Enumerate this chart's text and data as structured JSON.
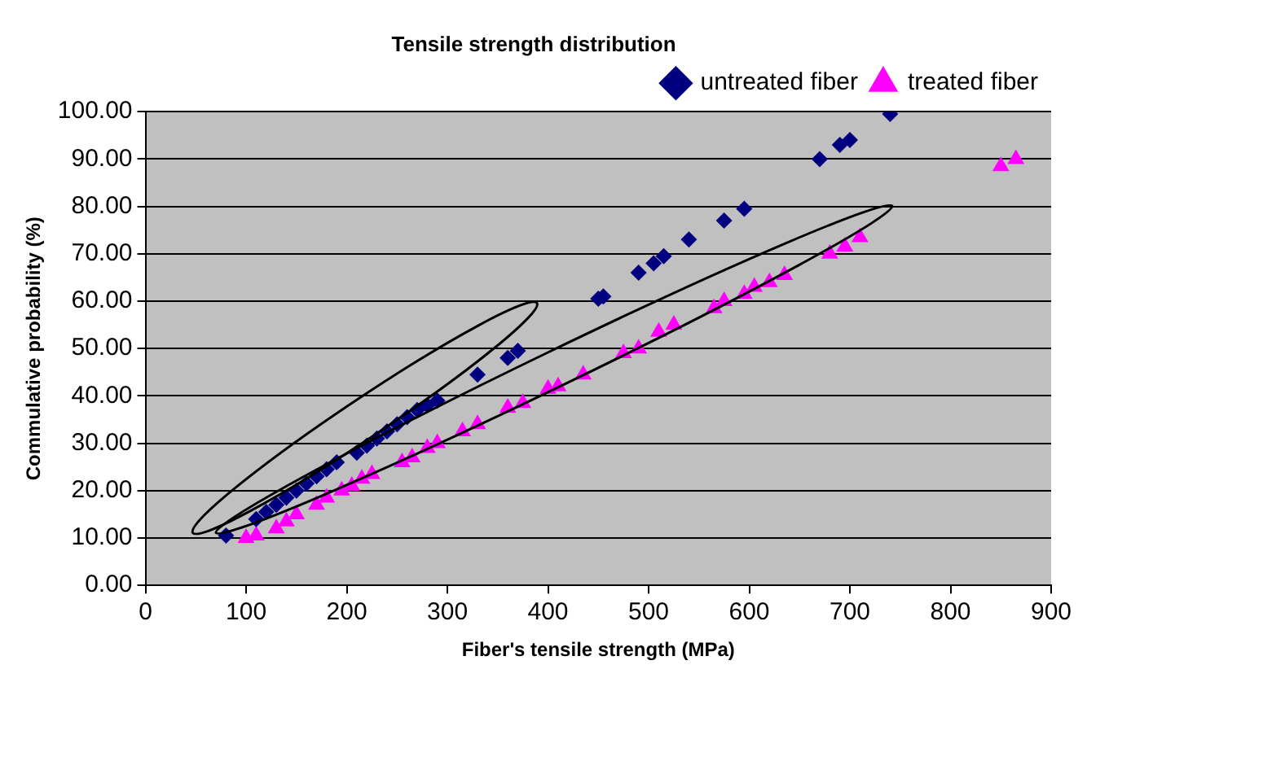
{
  "chart_data": {
    "type": "scatter",
    "title": "Tensile strength distribution",
    "xlabel": "Fiber's tensile strength (MPa)",
    "ylabel": "Commulative probability (%)",
    "xlim": [
      0,
      900
    ],
    "xticks": [
      0,
      100,
      200,
      300,
      400,
      500,
      600,
      700,
      800,
      900
    ],
    "ylim": [
      0,
      100
    ],
    "yticks": [
      {
        "value": 0,
        "label": "0.00"
      },
      {
        "value": 10,
        "label": "10.00"
      },
      {
        "value": 20,
        "label": "20.00"
      },
      {
        "value": 30,
        "label": "30.00"
      },
      {
        "value": 40,
        "label": "40.00"
      },
      {
        "value": 50,
        "label": "50.00"
      },
      {
        "value": 60,
        "label": "60.00"
      },
      {
        "value": 70,
        "label": "70.00"
      },
      {
        "value": 80,
        "label": "80.00"
      },
      {
        "value": 90,
        "label": "90.00"
      },
      {
        "value": 100,
        "label": "100.00"
      }
    ],
    "grid": "y",
    "legend": "top right",
    "series": [
      {
        "name": "untreated fiber",
        "color": "#000080",
        "marker": "diamond",
        "x": [
          80,
          110,
          120,
          130,
          140,
          150,
          160,
          170,
          180,
          190,
          210,
          220,
          230,
          240,
          250,
          260,
          270,
          280,
          290,
          330,
          360,
          370,
          450,
          455,
          490,
          505,
          515,
          540,
          575,
          595,
          670,
          690,
          700,
          740
        ],
        "values": [
          10.5,
          14,
          15.5,
          17,
          18.5,
          20,
          21.5,
          23,
          24.5,
          26,
          28,
          29.5,
          31,
          32.5,
          34,
          35.5,
          37,
          38,
          39,
          44.5,
          48,
          49.5,
          60.5,
          61,
          66,
          68,
          69.5,
          73,
          77,
          79.5,
          90,
          93,
          94,
          99.5
        ]
      },
      {
        "name": "treated fiber",
        "color": "#ff00ff",
        "marker": "triangle",
        "x": [
          100,
          110,
          130,
          140,
          150,
          170,
          180,
          195,
          205,
          215,
          225,
          255,
          265,
          280,
          290,
          315,
          330,
          360,
          375,
          400,
          410,
          435,
          475,
          490,
          510,
          525,
          565,
          575,
          595,
          605,
          620,
          635,
          680,
          695,
          710,
          850,
          865
        ],
        "values": [
          10,
          10.5,
          12,
          13.5,
          15,
          17,
          18.5,
          20,
          21,
          22.5,
          23.5,
          26,
          27,
          29,
          30,
          32.5,
          34,
          37.5,
          38.5,
          41.5,
          42,
          44.5,
          49,
          50,
          53.5,
          55,
          58.5,
          60,
          61.5,
          63,
          64,
          65.5,
          70,
          71.5,
          73.5,
          88.5,
          90
        ]
      }
    ]
  }
}
